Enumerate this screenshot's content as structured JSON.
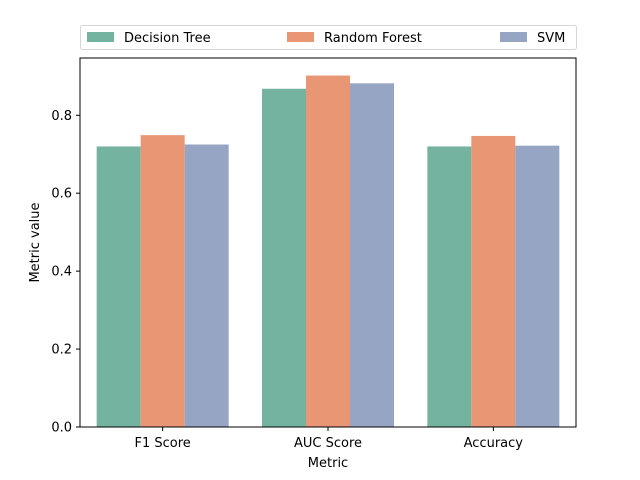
{
  "chart_data": {
    "type": "bar",
    "categories": [
      "F1 Score",
      "AUC Score",
      "Accuracy"
    ],
    "series": [
      {
        "name": "Decision Tree",
        "values": [
          0.72,
          0.868,
          0.72
        ],
        "color": "#73b3a0"
      },
      {
        "name": "Random Forest",
        "values": [
          0.749,
          0.902,
          0.747
        ],
        "color": "#e99675"
      },
      {
        "name": "SVM",
        "values": [
          0.725,
          0.882,
          0.722
        ],
        "color": "#96a5c3"
      }
    ],
    "xlabel": "Metric",
    "ylabel": "Metric value",
    "ylim": [
      0,
      0.947
    ],
    "yticks": [
      0.0,
      0.2,
      0.4,
      0.6,
      0.8
    ],
    "ytick_labels": [
      "0.0",
      "0.2",
      "0.4",
      "0.6",
      "0.8"
    ],
    "legend_position": "top",
    "grid": false
  }
}
